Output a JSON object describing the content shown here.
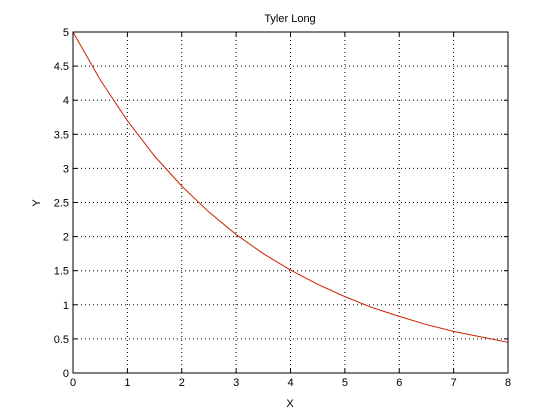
{
  "chart_data": {
    "type": "line",
    "title": "Tyler Long",
    "xlabel": "X",
    "ylabel": "Y",
    "xlim": [
      0,
      8
    ],
    "ylim": [
      0,
      5
    ],
    "xticks": [
      0,
      1,
      2,
      3,
      4,
      5,
      6,
      7,
      8
    ],
    "yticks": [
      0,
      0.5,
      1,
      1.5,
      2,
      2.5,
      3,
      3.5,
      4,
      4.5,
      5
    ],
    "xtick_labels": [
      "0",
      "1",
      "2",
      "3",
      "4",
      "5",
      "6",
      "7",
      "8"
    ],
    "ytick_labels": [
      "0",
      "0.5",
      "1",
      "1.5",
      "2",
      "2.5",
      "3",
      "3.5",
      "4",
      "4.5",
      "5"
    ],
    "grid": true,
    "series": [
      {
        "color": "#cc2200",
        "x": [
          0,
          0.5,
          1,
          1.5,
          2,
          2.5,
          3,
          3.5,
          4,
          4.5,
          5,
          5.5,
          6,
          6.5,
          7,
          7.5,
          8
        ],
        "y": [
          5.0,
          4.3,
          3.7,
          3.18,
          2.74,
          2.36,
          2.03,
          1.75,
          1.51,
          1.3,
          1.12,
          0.96,
          0.83,
          0.71,
          0.61,
          0.53,
          0.45
        ]
      }
    ]
  }
}
